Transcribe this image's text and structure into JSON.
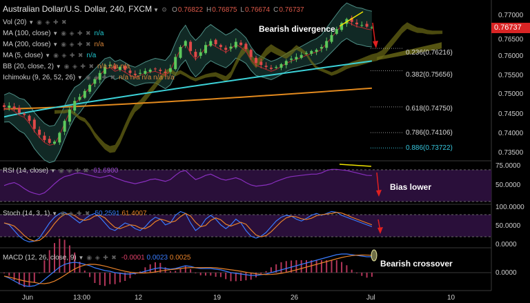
{
  "header": {
    "title": "Australian Dollar/U.S. Dollar, 240, FXCM",
    "o_label": "O",
    "o": "0.76822",
    "h_label": "H",
    "h": "0.76875",
    "l_label": "L",
    "l": "0.76674",
    "c_label": "C",
    "c": "0.76737"
  },
  "indicators": [
    {
      "label": "Vol (20)",
      "value": "",
      "value_color": "none"
    },
    {
      "label": "MA (100, close)",
      "value": "n/a",
      "value_color": "cyan"
    },
    {
      "label": "MA (200, close)",
      "value": "n/a",
      "value_color": "orange"
    },
    {
      "label": "MA (5, close)",
      "value": "n/a",
      "value_color": "cyan"
    },
    {
      "label": "BB (20, close, 2)",
      "value": "n/a n/a n/a",
      "value_color": "orange"
    },
    {
      "label": "Ichimoku (9, 26, 52, 26)",
      "value": "n/a n/a n/a n/a n/a",
      "value_color": "orange"
    }
  ],
  "annotations": {
    "bearish_divergence": "Bearish divergence",
    "bias_lower": "Bias lower",
    "bearish_crossover": "Bearish crossover"
  },
  "fib_levels": [
    {
      "label": "0.236(0.76216)",
      "value": 0.76216
    },
    {
      "label": "0.382(0.75656)",
      "value": 0.75656
    },
    {
      "label": "0.618(0.74750)",
      "value": 0.7475
    },
    {
      "label": "0.786(0.74106)",
      "value": 0.74106
    },
    {
      "label": "0.886(0.73722)",
      "value": 0.73722
    }
  ],
  "price_axis": {
    "ticks": [
      "0.77000",
      "0.76500",
      "0.76000",
      "0.75500",
      "0.75000",
      "0.74500",
      "0.74000",
      "0.73500"
    ],
    "current": "0.76737",
    "current_color": "#d92424"
  },
  "time_axis": {
    "labels": [
      "Jun",
      "13:00",
      "12",
      "19",
      "26",
      "Jul",
      "10"
    ]
  },
  "rsi": {
    "label": "RSI (14, close)",
    "value": "61.6900",
    "ticks": [
      "75.0000",
      "50.0000"
    ],
    "bands": [
      70,
      30
    ]
  },
  "stoch": {
    "label": "Stoch (14, 3, 1)",
    "k": "50.2591",
    "d": "61.4007",
    "ticks": [
      "100.0000",
      "50.0000",
      "0.0000"
    ],
    "bands": [
      80,
      20
    ]
  },
  "macd": {
    "label": "MACD (12, 26, close, 9)",
    "hist": "-0.0001",
    "macd": "0.0023",
    "signal": "0.0025",
    "ticks": [
      "0.0000"
    ]
  },
  "chart_data": {
    "type": "candlestick",
    "symbol": "AUD/USD",
    "timeframe": "240",
    "ylim": [
      0.734,
      0.7722
    ],
    "close_series_approx": [
      0.7475,
      0.7478,
      0.747,
      0.746,
      0.7455,
      0.744,
      0.742,
      0.7405,
      0.7392,
      0.7385,
      0.7388,
      0.741,
      0.744,
      0.7468,
      0.749,
      0.75,
      0.7515,
      0.753,
      0.7545,
      0.756,
      0.7575,
      0.758,
      0.757,
      0.7575,
      0.7568,
      0.756,
      0.7555,
      0.756,
      0.7565,
      0.7568,
      0.757,
      0.7565,
      0.756,
      0.7572,
      0.76,
      0.7625,
      0.764,
      0.7615,
      0.76,
      0.7612,
      0.763,
      0.764,
      0.7632,
      0.7625,
      0.7618,
      0.7626,
      0.7638,
      0.763,
      0.762,
      0.76,
      0.7585,
      0.758,
      0.7575,
      0.757,
      0.7575,
      0.7582,
      0.759,
      0.7596,
      0.76,
      0.7605,
      0.761,
      0.7615,
      0.7618,
      0.7625,
      0.764,
      0.7655,
      0.767,
      0.7685,
      0.7695,
      0.7688,
      0.7682,
      0.768,
      0.7676,
      0.7674
    ],
    "ma100_endpoints": [
      [
        0,
        0.745
      ],
      [
        73,
        0.759
      ]
    ],
    "ma200_endpoints": [
      [
        0,
        0.747
      ],
      [
        73,
        0.7522
      ]
    ],
    "fib_levels": [
      0.76216,
      0.75656,
      0.7475,
      0.74106,
      0.73722
    ],
    "rsi_series_approx": [
      45,
      48,
      50,
      46,
      40,
      35,
      32,
      30,
      33,
      40,
      48,
      55,
      60,
      62,
      65,
      66,
      64,
      62,
      60,
      58,
      60,
      62,
      58,
      55,
      52,
      50,
      48,
      50,
      52,
      55,
      56,
      54,
      52,
      55,
      62,
      68,
      70,
      62,
      55,
      58,
      62,
      64,
      60,
      56,
      54,
      56,
      58,
      55,
      50,
      46,
      44,
      45,
      46,
      48,
      52,
      55,
      58,
      60,
      61,
      62,
      63,
      64,
      64,
      66,
      70,
      72,
      72,
      71,
      70,
      68,
      66,
      64,
      62,
      61.69
    ],
    "stoch_k_approx": [
      60,
      55,
      40,
      25,
      15,
      10,
      12,
      20,
      40,
      60,
      75,
      85,
      88,
      80,
      70,
      60,
      70,
      80,
      85,
      75,
      60,
      45,
      40,
      50,
      60,
      55,
      45,
      40,
      50,
      65,
      75,
      70,
      55,
      60,
      80,
      90,
      85,
      60,
      40,
      50,
      70,
      80,
      70,
      55,
      45,
      55,
      70,
      60,
      40,
      25,
      20,
      25,
      35,
      50,
      65,
      75,
      80,
      78,
      70,
      65,
      72,
      80,
      85,
      80,
      85,
      90,
      88,
      80,
      75,
      70,
      65,
      60,
      55,
      50.26
    ],
    "macd_series_approx": [
      -0.0005,
      -0.0008,
      -0.0012,
      -0.0016,
      -0.0019,
      -0.002,
      -0.0019,
      -0.0016,
      -0.001,
      -0.0004,
      0.0002,
      0.0008,
      0.0012,
      0.0014,
      0.0015,
      0.0014,
      0.0012,
      0.001,
      0.0007,
      0.0005,
      0.0003,
      0.0002,
      0.0,
      -0.0001,
      -0.0002,
      -0.0002,
      -0.0001,
      0.0,
      0.0002,
      0.0004,
      0.0006,
      0.0007,
      0.0006,
      0.0005,
      0.0006,
      0.0008,
      0.001,
      0.0009,
      0.0007,
      0.0006,
      0.0006,
      0.0006,
      0.0005,
      0.0004,
      0.0002,
      0.0,
      -0.0001,
      -0.0002,
      -0.0003,
      -0.0004,
      -0.0004,
      -0.0003,
      -0.0002,
      0.0,
      0.0002,
      0.0004,
      0.0006,
      0.0008,
      0.001,
      0.0012,
      0.0014,
      0.0016,
      0.0018,
      0.002,
      0.0022,
      0.0024,
      0.0026,
      0.0027,
      0.0027,
      0.0026,
      0.0025,
      0.0024,
      0.0023,
      0.0023
    ],
    "macd_signal_approx_end": 0.0025
  }
}
